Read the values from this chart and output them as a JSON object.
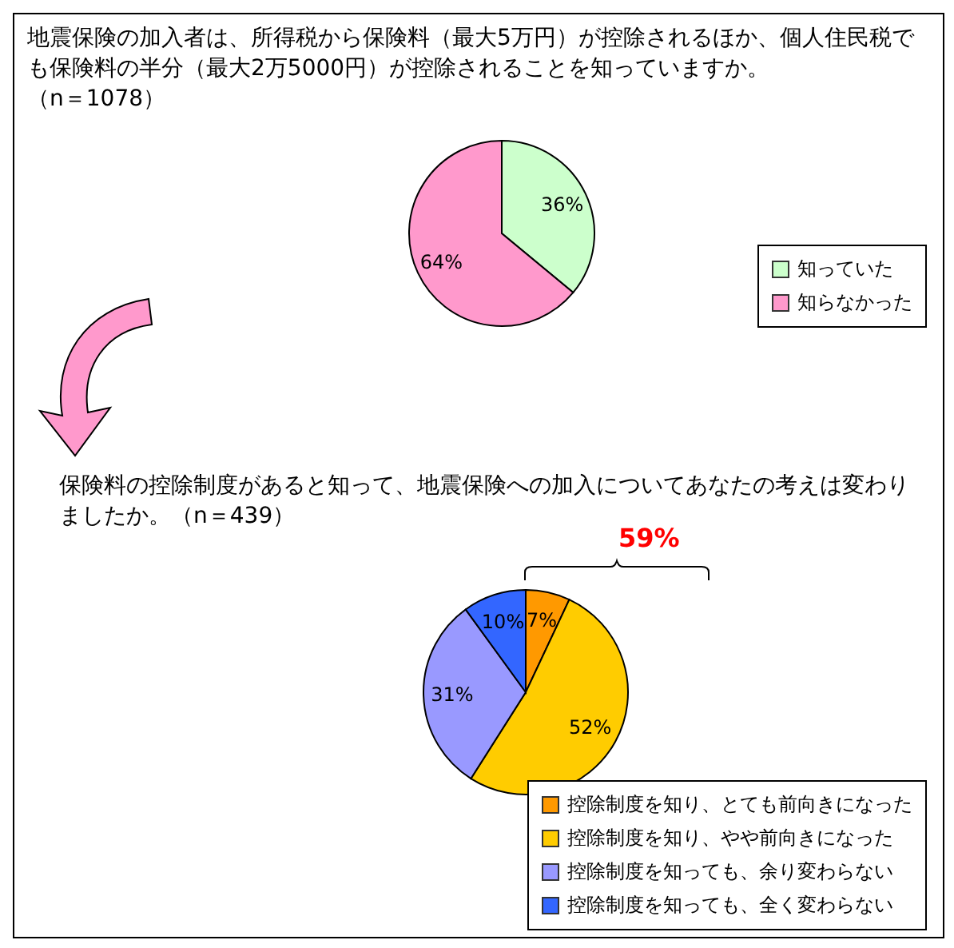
{
  "chart_data": [
    {
      "type": "pie",
      "title": "地震保険の加入者は、所得税から保険料（最大5万円）が控除されるほか、個人住民税でも保険料の半分（最大2万5000円）が控除されることを知っていますか。",
      "subtitle": "（n＝1078）",
      "categories": [
        "知っていた",
        "知らなかった"
      ],
      "values": [
        36,
        64
      ],
      "colors": [
        "#ccffcc",
        "#ff99cc"
      ],
      "value_labels": [
        "36%",
        "64%"
      ],
      "legend": "right"
    },
    {
      "type": "pie",
      "title": "保険料の控除制度があると知って、地震保険への加入についてあなたの考えは変わりましたか。（n＝439）",
      "categories": [
        "控除制度を知り、とても前向きになった",
        "控除制度を知り、やや前向きになった",
        "控除制度を知っても、余り変わらない",
        "控除制度を知っても、全く変わらない"
      ],
      "values": [
        7,
        52,
        31,
        10
      ],
      "colors": [
        "#ff9900",
        "#ffcc00",
        "#9999ff",
        "#3366ff"
      ],
      "value_labels": [
        "7%",
        "52%",
        "31%",
        "10%"
      ],
      "annotations": [
        "59%"
      ],
      "legend": "bottom right"
    }
  ]
}
